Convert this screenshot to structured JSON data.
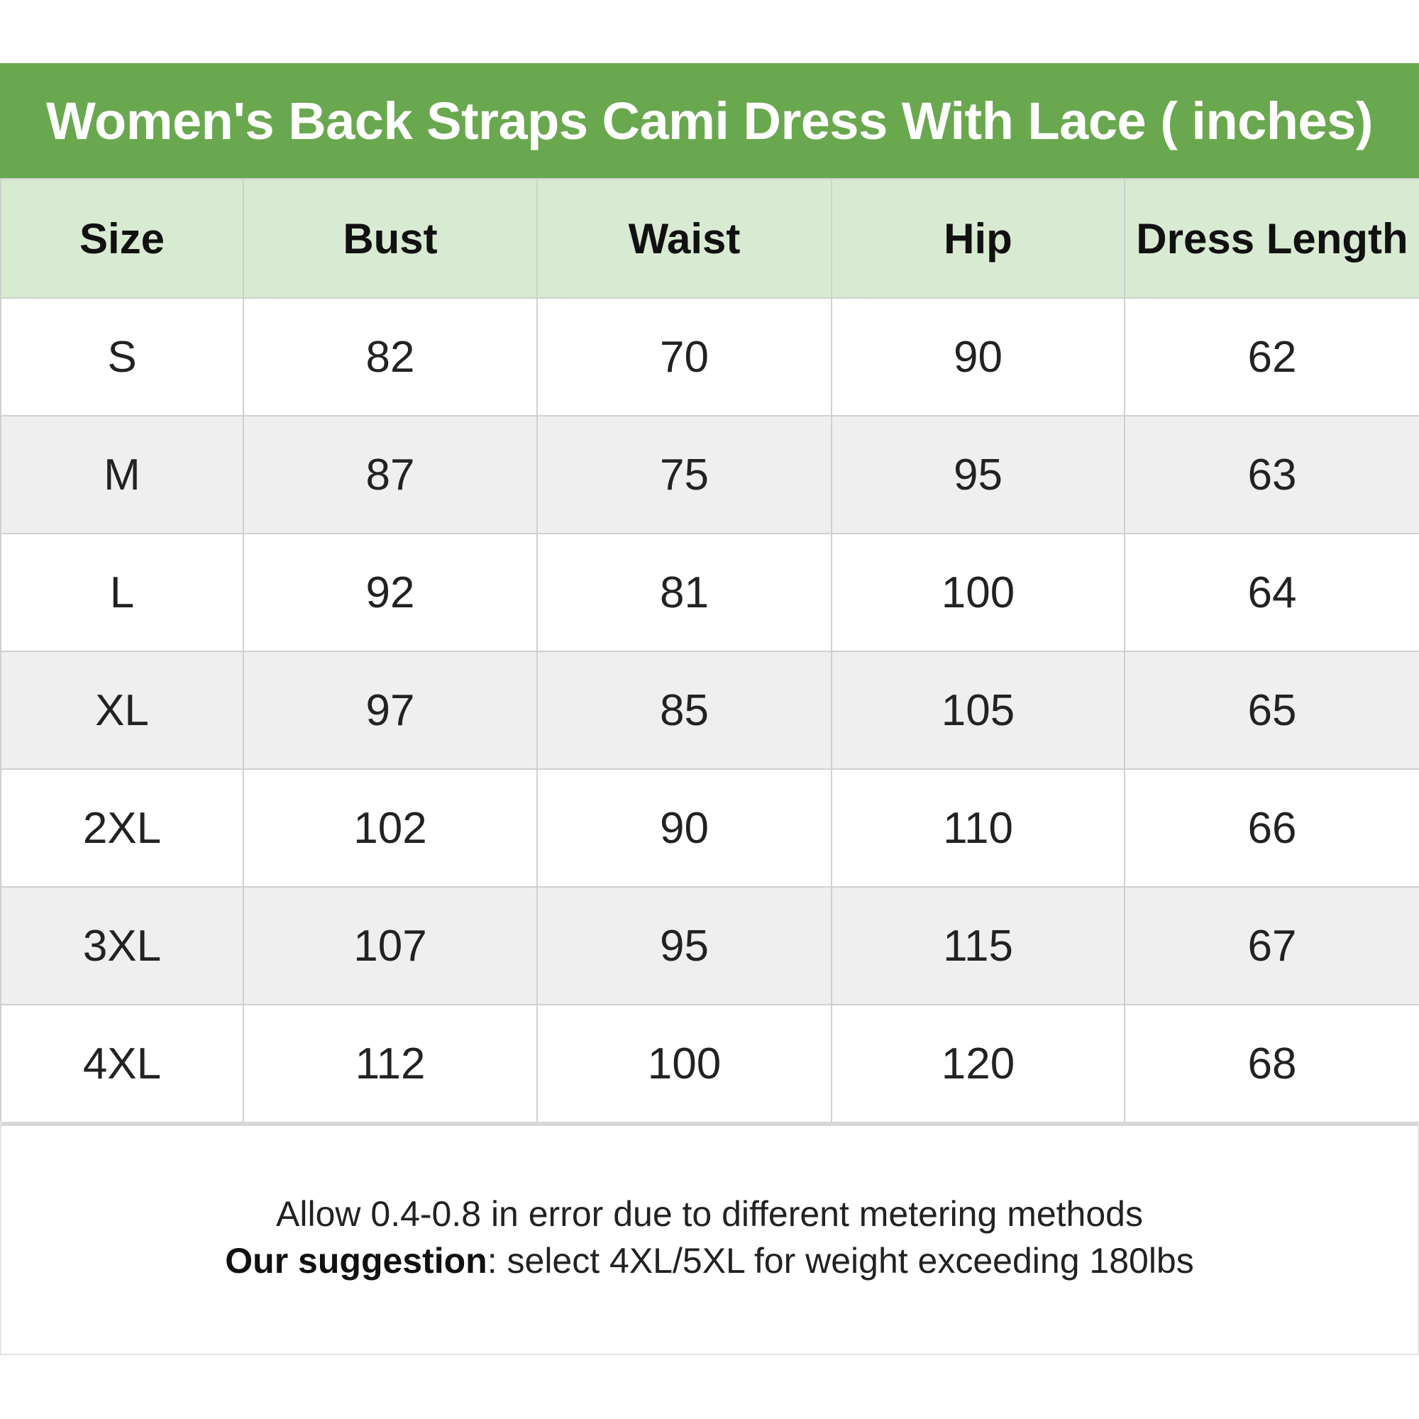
{
  "title": "Women's Back Straps Cami Dress With Lace ( inches)",
  "columns": [
    "Size",
    "Bust",
    "Waist",
    "Hip",
    "Dress Length"
  ],
  "rows": [
    [
      "S",
      "82",
      "70",
      "90",
      "62"
    ],
    [
      "M",
      "87",
      "75",
      "95",
      "63"
    ],
    [
      "L",
      "92",
      "81",
      "100",
      "64"
    ],
    [
      "XL",
      "97",
      "85",
      "105",
      "65"
    ],
    [
      "2XL",
      "102",
      "90",
      "110",
      "66"
    ],
    [
      "3XL",
      "107",
      "95",
      "115",
      "67"
    ],
    [
      "4XL",
      "112",
      "100",
      "120",
      "68"
    ]
  ],
  "footer": {
    "note": "Allow 0.4-0.8 in error due to different metering methods",
    "suggestion_label": "Our suggestion",
    "suggestion_text": ": select 4XL/5XL for weight exceeding 180lbs"
  },
  "colors": {
    "title_bg": "#6aa84f",
    "header_bg": "#d9ead3",
    "alt_row_bg": "#efefef"
  }
}
